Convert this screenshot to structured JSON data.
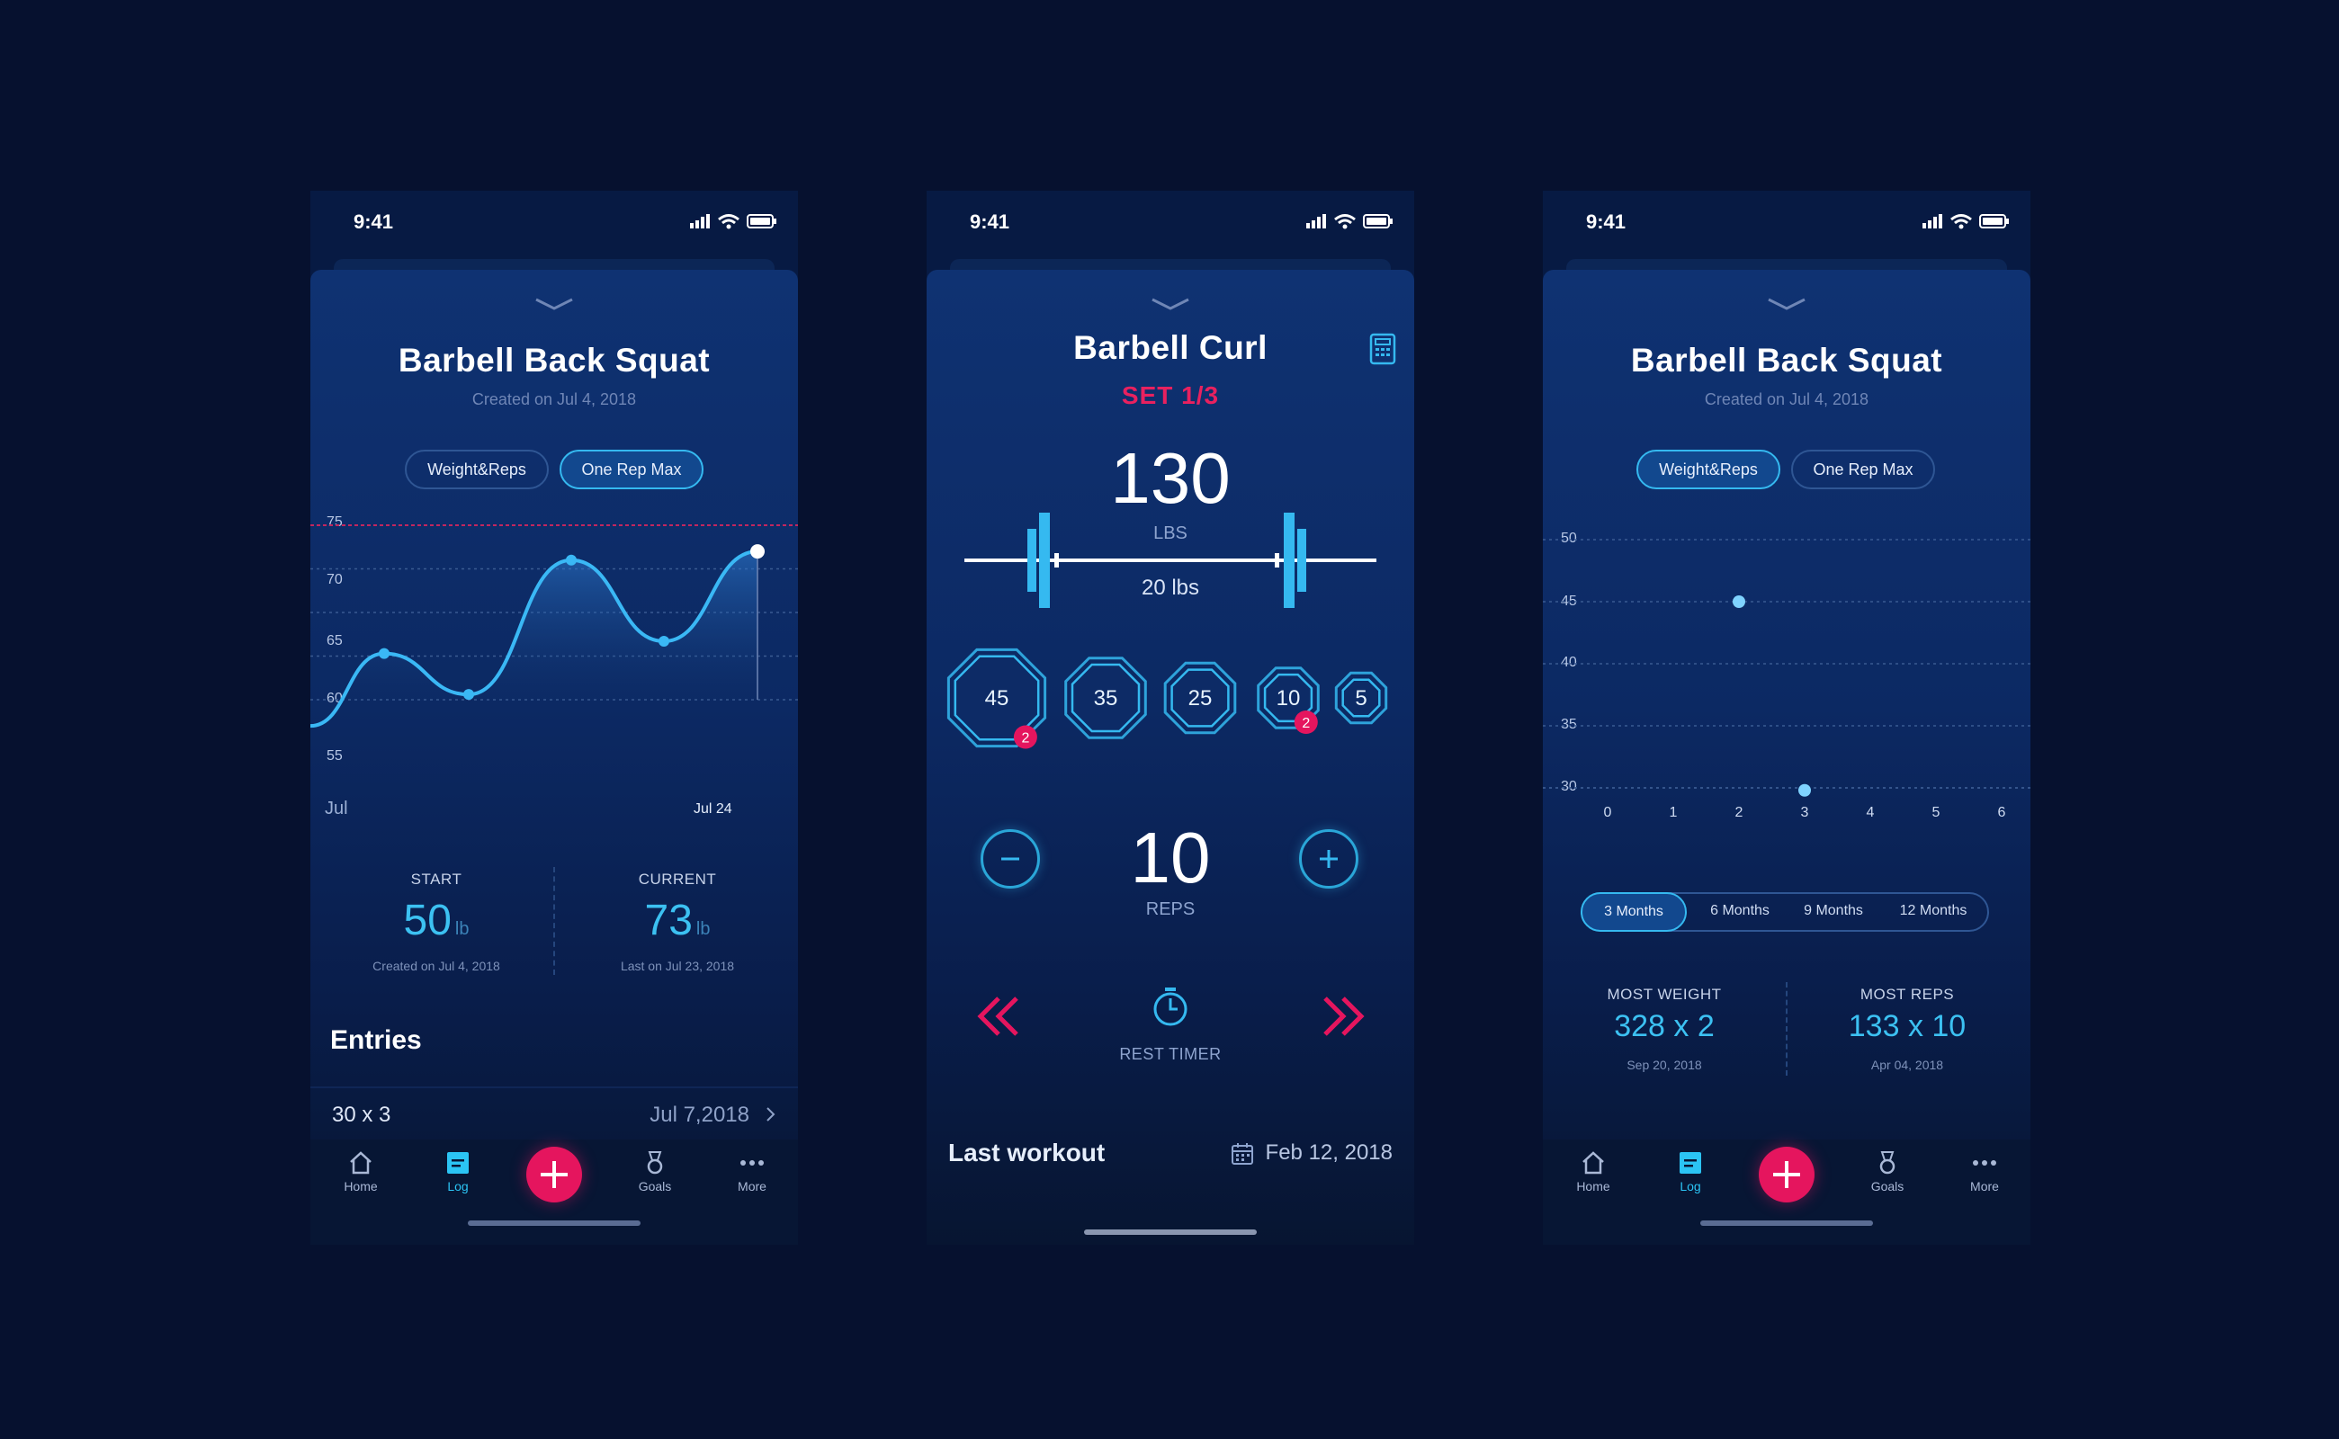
{
  "colors": {
    "accent": "#35b9f0",
    "danger": "#e5155e",
    "bg": "#06112f",
    "card": "#0c2963"
  },
  "status": {
    "time": "9:41"
  },
  "screen1": {
    "title": "Barbell Back Squat",
    "subtitle": "Created on Jul 4, 2018",
    "segments": [
      "Weight&Reps",
      "One Rep Max"
    ],
    "active_segment": "One Rep Max",
    "chart_data": {
      "type": "line",
      "y_ticks": [
        "75",
        "70",
        "65",
        "60",
        "55"
      ],
      "ylim": [
        55,
        75
      ],
      "x_labels": [
        "Jul",
        "Jul 24"
      ],
      "points": [
        52,
        60.3,
        55.6,
        71,
        61.7,
        72
      ]
    },
    "stats": {
      "start_label": "START",
      "start_value": "50",
      "start_unit": "lb",
      "start_sub": "Created on Jul 4, 2018",
      "current_label": "CURRENT",
      "current_value": "73",
      "current_unit": "lb",
      "current_sub": "Last on Jul 23, 2018"
    },
    "entries_title": "Entries",
    "entry": {
      "value": "30 x 3",
      "date": "Jul 7,2018"
    }
  },
  "tabs": {
    "home": "Home",
    "log": "Log",
    "goals": "Goals",
    "more": "More"
  },
  "screen2": {
    "title": "Barbell Curl",
    "set": "SET 1/3",
    "weight": "130",
    "weight_unit": "LBS",
    "bar_label": "20 lbs",
    "plates": [
      {
        "label": "45",
        "badge": "2"
      },
      {
        "label": "35",
        "badge": ""
      },
      {
        "label": "25",
        "badge": ""
      },
      {
        "label": "10",
        "badge": "2"
      },
      {
        "label": "5",
        "badge": ""
      }
    ],
    "reps": "10",
    "reps_label": "REPS",
    "rest_label": "REST TIMER",
    "last_workout_label": "Last workout",
    "last_workout_date": "Feb 12, 2018"
  },
  "screen3": {
    "title": "Barbell Back Squat",
    "subtitle": "Created on Jul 4, 2018",
    "segments": [
      "Weight&Reps",
      "One Rep Max"
    ],
    "active_segment": "Weight&Reps",
    "chart_data": {
      "type": "scatter",
      "y_ticks": [
        "50",
        "45",
        "40",
        "35",
        "30"
      ],
      "ylim": [
        30,
        50
      ],
      "x_ticks": [
        "0",
        "1",
        "2",
        "3",
        "4",
        "5",
        "6"
      ],
      "points": [
        {
          "x": 2,
          "y": 45
        },
        {
          "x": 3,
          "y": 29.8
        }
      ]
    },
    "ranges": [
      "3 Months",
      "6 Months",
      "9 Months",
      "12 Months"
    ],
    "active_range": "3 Months",
    "stats": {
      "most_weight_label": "MOST WEIGHT",
      "most_weight_value": "328 x 2",
      "most_weight_sub": "Sep 20, 2018",
      "most_reps_label": "MOST REPS",
      "most_reps_value": "133 x 10",
      "most_reps_sub": "Apr 04, 2018"
    }
  }
}
